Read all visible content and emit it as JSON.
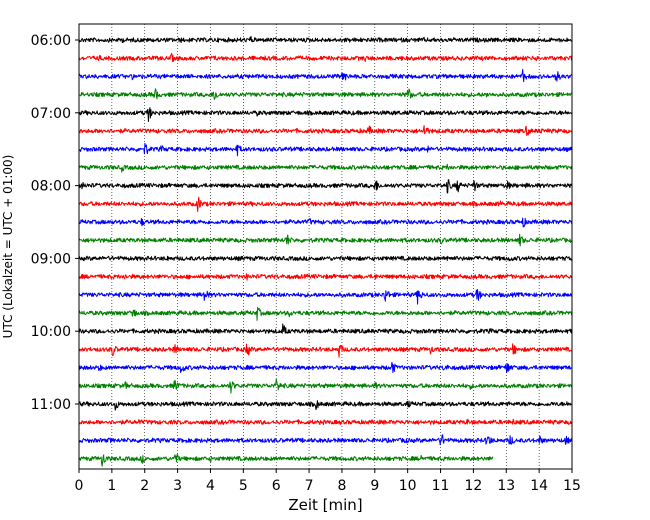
{
  "chart_data": {
    "type": "line",
    "xlabel": "Zeit  [min]",
    "ylabel": "UTC (Lokalzeit = UTC + 01:00)",
    "xlim": [
      0,
      15
    ],
    "x_ticks": [
      "0",
      "1",
      "2",
      "3",
      "4",
      "5",
      "6",
      "7",
      "8",
      "9",
      "10",
      "11",
      "12",
      "13",
      "14",
      "15"
    ],
    "y_ticks": [
      "06:00",
      "07:00",
      "08:00",
      "09:00",
      "10:00",
      "11:00"
    ],
    "grid": "vertical-dotted",
    "colors": [
      "#000000",
      "#ff0000",
      "#0000ff",
      "#008000"
    ],
    "traces": [
      {
        "start": "06:00",
        "color": "#000000",
        "events": [
          [
            1.3,
            0.35
          ],
          [
            3.1,
            0.3
          ],
          [
            5.2,
            0.5
          ],
          [
            10.5,
            0.3
          ],
          [
            11.8,
            0.3
          ],
          [
            12.8,
            0.2
          ]
        ]
      },
      {
        "start": "06:15",
        "color": "#ff0000",
        "events": [
          [
            0.6,
            0.4
          ],
          [
            2.8,
            0.6
          ],
          [
            4.1,
            0.4
          ],
          [
            8.7,
            0.4
          ],
          [
            9.8,
            0.3
          ],
          [
            13.9,
            0.4
          ]
        ]
      },
      {
        "start": "06:30",
        "color": "#0000ff",
        "events": [
          [
            1.6,
            0.4
          ],
          [
            8.0,
            0.9
          ],
          [
            13.5,
            0.8
          ],
          [
            14.5,
            0.9
          ]
        ]
      },
      {
        "start": "06:45",
        "color": "#008000",
        "events": [
          [
            2.3,
            0.8
          ],
          [
            4.1,
            0.9
          ],
          [
            10.0,
            0.9
          ],
          [
            12.4,
            0.4
          ]
        ]
      },
      {
        "start": "07:00",
        "color": "#000000",
        "events": [
          [
            2.1,
            1.0
          ],
          [
            5.4,
            0.4
          ],
          [
            8.3,
            0.3
          ],
          [
            9.6,
            0.3
          ]
        ]
      },
      {
        "start": "07:15",
        "color": "#ff0000",
        "events": [
          [
            0.7,
            0.4
          ],
          [
            8.8,
            0.7
          ],
          [
            10.5,
            0.9
          ],
          [
            13.6,
            0.7
          ],
          [
            14.0,
            0.5
          ]
        ]
      },
      {
        "start": "07:30",
        "color": "#0000ff",
        "events": [
          [
            2.0,
            0.9
          ],
          [
            2.5,
            0.5
          ],
          [
            4.8,
            0.8
          ],
          [
            10.6,
            0.4
          ]
        ]
      },
      {
        "start": "07:45",
        "color": "#008000",
        "events": [
          [
            1.3,
            0.5
          ],
          [
            11.2,
            0.4
          ]
        ]
      },
      {
        "start": "08:00",
        "color": "#000000",
        "events": [
          [
            0.1,
            0.5
          ],
          [
            9.0,
            0.9
          ],
          [
            11.2,
            0.9
          ],
          [
            11.5,
            0.9
          ],
          [
            12.0,
            0.8
          ],
          [
            13.0,
            0.7
          ],
          [
            13.6,
            0.3
          ]
        ]
      },
      {
        "start": "08:15",
        "color": "#ff0000",
        "events": [
          [
            3.6,
            1.0
          ],
          [
            12.8,
            0.4
          ]
        ]
      },
      {
        "start": "08:30",
        "color": "#0000ff",
        "events": [
          [
            1.9,
            0.5
          ],
          [
            7.0,
            0.5
          ],
          [
            11.5,
            0.4
          ],
          [
            13.5,
            0.7
          ]
        ]
      },
      {
        "start": "08:45",
        "color": "#008000",
        "events": [
          [
            0.4,
            0.4
          ],
          [
            6.3,
            0.9
          ],
          [
            11.0,
            0.5
          ],
          [
            13.4,
            0.8
          ]
        ]
      },
      {
        "start": "09:00",
        "color": "#000000",
        "events": [
          [
            2.7,
            0.4
          ],
          [
            4.9,
            0.3
          ],
          [
            11.2,
            0.5
          ],
          [
            13.1,
            0.5
          ]
        ]
      },
      {
        "start": "09:15",
        "color": "#ff0000",
        "events": [
          [
            1.4,
            0.4
          ],
          [
            5.1,
            0.4
          ],
          [
            9.0,
            0.4
          ]
        ]
      },
      {
        "start": "09:30",
        "color": "#0000ff",
        "events": [
          [
            3.8,
            0.9
          ],
          [
            9.3,
            1.0
          ],
          [
            10.3,
            1.0
          ],
          [
            12.1,
            0.9
          ]
        ]
      },
      {
        "start": "09:45",
        "color": "#008000",
        "events": [
          [
            1.6,
            0.9
          ],
          [
            5.4,
            0.9
          ],
          [
            6.4,
            0.5
          ]
        ]
      },
      {
        "start": "10:00",
        "color": "#000000",
        "events": [
          [
            6.2,
            0.8
          ],
          [
            12.5,
            0.4
          ]
        ]
      },
      {
        "start": "10:15",
        "color": "#ff0000",
        "events": [
          [
            1.0,
            0.9
          ],
          [
            2.9,
            0.7
          ],
          [
            5.1,
            0.9
          ],
          [
            7.9,
            0.9
          ],
          [
            10.7,
            0.6
          ],
          [
            13.2,
            0.8
          ]
        ]
      },
      {
        "start": "10:30",
        "color": "#0000ff",
        "events": [
          [
            0.6,
            0.5
          ],
          [
            3.1,
            0.8
          ],
          [
            9.5,
            0.9
          ],
          [
            11.1,
            0.7
          ],
          [
            13.0,
            0.9
          ]
        ]
      },
      {
        "start": "10:45",
        "color": "#008000",
        "events": [
          [
            1.4,
            0.5
          ],
          [
            2.9,
            0.9
          ],
          [
            4.6,
            0.9
          ],
          [
            6.0,
            0.9
          ],
          [
            9.0,
            0.5
          ],
          [
            11.9,
            0.4
          ]
        ]
      },
      {
        "start": "11:00",
        "color": "#000000",
        "events": [
          [
            1.1,
            0.7
          ],
          [
            7.2,
            0.7
          ],
          [
            10.0,
            0.5
          ],
          [
            14.8,
            0.4
          ]
        ]
      },
      {
        "start": "11:15",
        "color": "#ff0000",
        "events": [
          [
            1.8,
            0.4
          ],
          [
            11.8,
            0.4
          ],
          [
            13.2,
            0.4
          ]
        ]
      },
      {
        "start": "11:30",
        "color": "#0000ff",
        "events": [
          [
            0.9,
            0.4
          ],
          [
            1.6,
            0.3
          ],
          [
            3.2,
            0.4
          ],
          [
            9.9,
            0.5
          ],
          [
            11.0,
            1.0
          ],
          [
            12.4,
            1.0
          ],
          [
            13.1,
            0.8
          ],
          [
            14.0,
            0.6
          ],
          [
            14.8,
            0.6
          ]
        ]
      },
      {
        "start": "11:45",
        "color": "#008000",
        "events": [
          [
            0.7,
            1.0
          ],
          [
            1.9,
            0.6
          ],
          [
            2.9,
            0.9
          ],
          [
            4.0,
            0.4
          ],
          [
            10.4,
            0.5
          ]
        ],
        "end": 12.6
      }
    ]
  }
}
